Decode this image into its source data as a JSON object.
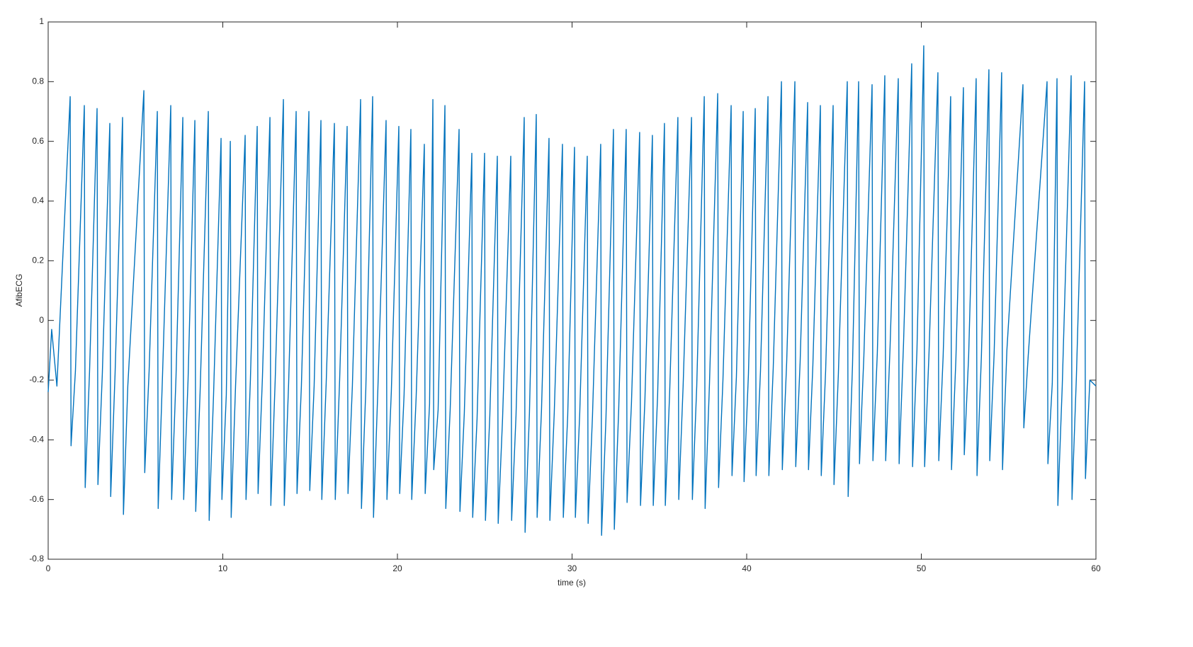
{
  "chart_data": {
    "type": "line",
    "xlabel": "time (s)",
    "ylabel": "AfibECG",
    "xlim": [
      0,
      60
    ],
    "ylim": [
      -0.8,
      1
    ],
    "xticks": [
      0,
      10,
      20,
      30,
      40,
      50,
      60
    ],
    "yticks": [
      -0.8,
      -0.6,
      -0.4,
      -0.2,
      0,
      0.2,
      0.4,
      0.6,
      0.8,
      1
    ],
    "grid": false,
    "x": [
      0,
      0.2,
      0.5,
      1.26,
      1.31,
      1.56,
      2.07,
      2.12,
      2.37,
      2.8,
      2.85,
      3.1,
      3.53,
      3.58,
      3.83,
      4.26,
      4.31,
      4.56,
      5.48,
      5.53,
      5.78,
      6.25,
      6.3,
      6.55,
      7.02,
      7.07,
      7.32,
      7.71,
      7.76,
      8.01,
      8.4,
      8.45,
      8.7,
      9.17,
      9.22,
      9.47,
      9.9,
      9.95,
      10.2,
      10.43,
      10.48,
      10.73,
      11.28,
      11.33,
      11.58,
      11.97,
      12.02,
      12.27,
      12.7,
      12.75,
      13,
      13.47,
      13.52,
      13.77,
      14.2,
      14.25,
      14.5,
      14.93,
      14.98,
      15.23,
      15.62,
      15.67,
      15.92,
      16.39,
      16.44,
      16.69,
      17.12,
      17.17,
      17.42,
      17.89,
      17.94,
      18.19,
      18.58,
      18.63,
      18.88,
      19.35,
      19.4,
      19.65,
      20.08,
      20.13,
      20.38,
      20.77,
      20.82,
      21.07,
      21.54,
      21.59,
      21.84,
      22.03,
      22.08,
      22.33,
      22.72,
      22.77,
      23.02,
      23.53,
      23.58,
      23.83,
      24.26,
      24.31,
      24.56,
      24.99,
      25.04,
      25.29,
      25.72,
      25.77,
      26.02,
      26.49,
      26.54,
      26.79,
      27.26,
      27.31,
      27.56,
      27.95,
      28,
      28.25,
      28.68,
      28.73,
      28.98,
      29.45,
      29.5,
      29.75,
      30.14,
      30.19,
      30.44,
      30.87,
      30.92,
      31.17,
      31.64,
      31.69,
      31.94,
      32.37,
      32.42,
      32.67,
      33.1,
      33.15,
      33.4,
      33.87,
      33.92,
      34.17,
      34.6,
      34.65,
      34.9,
      35.29,
      35.34,
      35.59,
      36.06,
      36.11,
      36.36,
      36.84,
      36.89,
      37.14,
      37.57,
      37.62,
      37.87,
      38.34,
      38.39,
      38.64,
      39.11,
      39.16,
      39.41,
      39.8,
      39.85,
      40.1,
      40.49,
      40.54,
      40.79,
      41.22,
      41.27,
      41.52,
      41.99,
      42.04,
      42.29,
      42.76,
      42.81,
      43.06,
      43.49,
      43.54,
      43.79,
      44.22,
      44.27,
      44.52,
      44.95,
      45,
      45.25,
      45.76,
      45.81,
      46.06,
      46.41,
      46.46,
      46.71,
      47.18,
      47.23,
      47.48,
      47.91,
      47.96,
      48.21,
      48.68,
      48.73,
      48.98,
      49.45,
      49.5,
      49.75,
      50.14,
      50.19,
      50.44,
      50.95,
      51,
      51.25,
      51.68,
      51.73,
      51.98,
      52.41,
      52.46,
      52.71,
      53.14,
      53.19,
      53.44,
      53.87,
      53.92,
      54.17,
      54.6,
      54.65,
      54.9,
      55.82,
      55.87,
      56.12,
      57.2,
      57.25,
      57.5,
      57.77,
      57.82,
      58.07,
      58.58,
      58.63,
      58.88,
      59.35,
      59.4,
      59.65,
      60
    ],
    "series": [
      {
        "color": "#0072bd",
        "values": [
          -0.24,
          -0.03,
          -0.22,
          0.75,
          -0.42,
          -0.17,
          0.72,
          -0.56,
          -0.17,
          0.71,
          -0.55,
          -0.18,
          0.66,
          -0.59,
          -0.18,
          0.68,
          -0.65,
          -0.22,
          0.77,
          -0.51,
          -0.17,
          0.7,
          -0.63,
          -0.18,
          0.72,
          -0.6,
          -0.19,
          0.68,
          -0.6,
          -0.2,
          0.67,
          -0.64,
          -0.24,
          0.7,
          -0.67,
          -0.25,
          0.61,
          -0.6,
          -0.25,
          0.6,
          -0.66,
          -0.22,
          0.62,
          -0.6,
          -0.2,
          0.65,
          -0.58,
          -0.19,
          0.68,
          -0.62,
          -0.2,
          0.74,
          -0.62,
          -0.21,
          0.7,
          -0.58,
          -0.22,
          0.7,
          -0.57,
          -0.22,
          0.67,
          -0.6,
          -0.21,
          0.66,
          -0.6,
          -0.2,
          0.65,
          -0.58,
          -0.22,
          0.74,
          -0.63,
          -0.23,
          0.75,
          -0.66,
          -0.23,
          0.67,
          -0.6,
          -0.24,
          0.65,
          -0.58,
          -0.25,
          0.64,
          -0.6,
          -0.26,
          0.59,
          -0.58,
          -0.28,
          0.74,
          -0.5,
          -0.3,
          0.72,
          -0.63,
          -0.3,
          0.64,
          -0.64,
          -0.31,
          0.56,
          -0.66,
          -0.33,
          0.56,
          -0.67,
          -0.32,
          0.55,
          -0.68,
          -0.33,
          0.55,
          -0.67,
          -0.32,
          0.68,
          -0.71,
          -0.31,
          0.69,
          -0.66,
          -0.3,
          0.61,
          -0.67,
          -0.31,
          0.59,
          -0.66,
          -0.32,
          0.58,
          -0.66,
          -0.31,
          0.55,
          -0.68,
          -0.32,
          0.59,
          -0.72,
          -0.33,
          0.64,
          -0.7,
          -0.3,
          0.64,
          -0.61,
          -0.28,
          0.63,
          -0.62,
          -0.27,
          0.62,
          -0.62,
          -0.25,
          0.66,
          -0.62,
          -0.24,
          0.68,
          -0.6,
          -0.22,
          0.68,
          -0.6,
          -0.22,
          0.75,
          -0.63,
          -0.21,
          0.76,
          -0.56,
          -0.2,
          0.72,
          -0.52,
          -0.19,
          0.7,
          -0.54,
          -0.18,
          0.71,
          -0.52,
          -0.17,
          0.75,
          -0.52,
          -0.16,
          0.8,
          -0.5,
          -0.14,
          0.8,
          -0.49,
          -0.14,
          0.73,
          -0.5,
          -0.15,
          0.72,
          -0.52,
          -0.17,
          0.72,
          -0.55,
          -0.18,
          0.8,
          -0.59,
          -0.15,
          0.8,
          -0.48,
          -0.12,
          0.79,
          -0.47,
          -0.11,
          0.82,
          -0.47,
          -0.09,
          0.81,
          -0.48,
          -0.08,
          0.86,
          -0.49,
          -0.1,
          0.92,
          -0.49,
          -0.11,
          0.83,
          -0.47,
          -0.12,
          0.75,
          -0.5,
          -0.13,
          0.78,
          -0.45,
          -0.12,
          0.81,
          -0.52,
          -0.12,
          0.84,
          -0.47,
          -0.11,
          0.83,
          -0.5,
          -0.1,
          0.79,
          -0.36,
          -0.12,
          0.8,
          -0.48,
          -0.21,
          0.81,
          -0.62,
          -0.22,
          0.82,
          -0.6,
          -0.19,
          0.8,
          -0.53,
          -0.2,
          -0.22
        ]
      }
    ]
  }
}
